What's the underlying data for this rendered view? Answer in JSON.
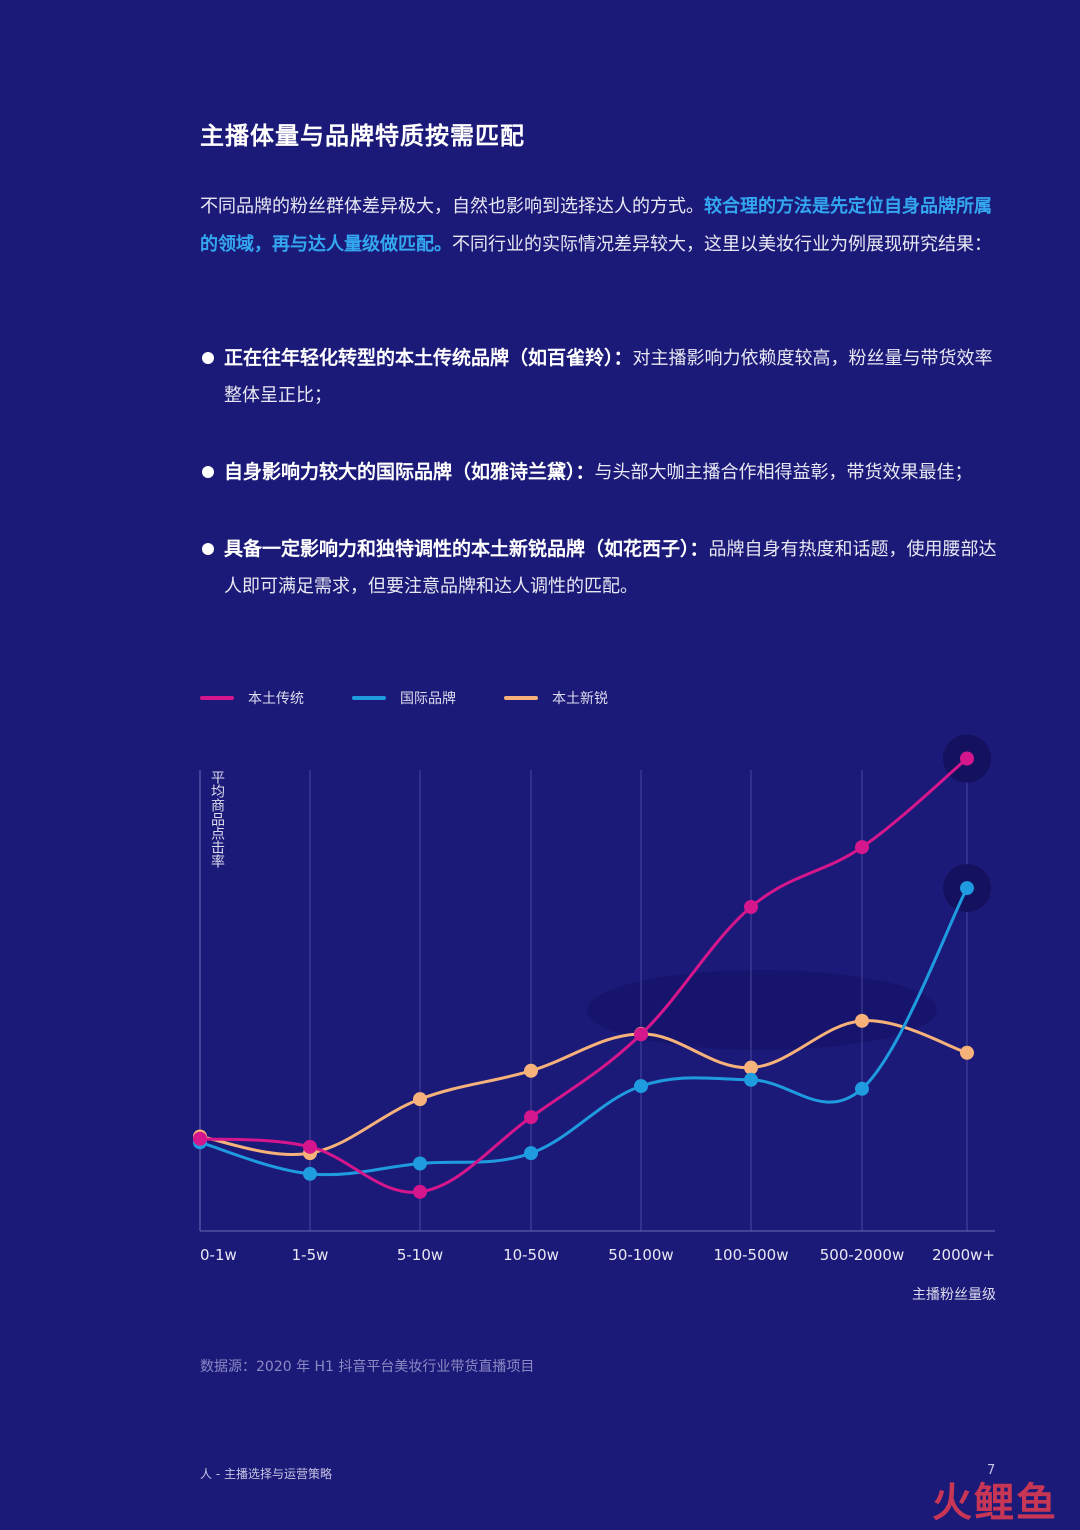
{
  "heading": "主播体量与品牌特质按需匹配",
  "intro": {
    "part1": "不同品牌的粉丝群体差异极大，自然也影响到选择达人的方式。",
    "highlight": "较合理的方法是先定位自身品牌所属的领域，再与达人量级做匹配。",
    "part2": "不同行业的实际情况差异较大，这里以美妆行业为例展现研究结果："
  },
  "bullets": [
    {
      "lead": "正在往年轻化转型的本土传统品牌（如百雀羚）：",
      "text": "对主播影响力依赖度较高，粉丝量与带货效率整体呈正比；"
    },
    {
      "lead": "自身影响力较大的国际品牌（如雅诗兰黛）：",
      "text": "与头部大咖主播合作相得益彰，带货效果最佳；"
    },
    {
      "lead": "具备一定影响力和独特调性的本土新锐品牌（如花西子）：",
      "text": "品牌自身有热度和话题，使用腰部达人即可满足需求，但要注意品牌和达人调性的匹配。"
    }
  ],
  "colors": {
    "background": "#1c1a78",
    "accent": "#33a7f0",
    "series1": "#d6168c",
    "series2": "#1f9be0",
    "series3": "#f6b27a"
  },
  "chart_data": {
    "type": "line",
    "ylabel": "平均商品点击率",
    "xlabel": "主播粉丝量级",
    "categories": [
      "0-1w",
      "1-5w",
      "5-10w",
      "10-50w",
      "50-100w",
      "100-500w",
      "500-2000w",
      "2000w+"
    ],
    "series": [
      {
        "name": "本土传统",
        "values": [
          20.5,
          18.7,
          8.7,
          25.3,
          43.7,
          72.0,
          85.3,
          105.0
        ]
      },
      {
        "name": "国际品牌",
        "values": [
          19.7,
          12.7,
          15.0,
          17.3,
          32.2,
          33.6,
          31.6,
          76.2
        ]
      },
      {
        "name": "本土新锐",
        "values": [
          21.0,
          17.3,
          29.3,
          35.6,
          43.8,
          36.3,
          46.7,
          39.6
        ]
      }
    ],
    "ylim": [
      0,
      100
    ],
    "grid": true,
    "legend": "top-left"
  },
  "source": "数据源：2020 年 H1 抖音平台美妆行业带货直播项目",
  "footer": {
    "left": "人 - 主播选择与运营策略",
    "page": "7"
  },
  "watermark": "火鲤鱼"
}
